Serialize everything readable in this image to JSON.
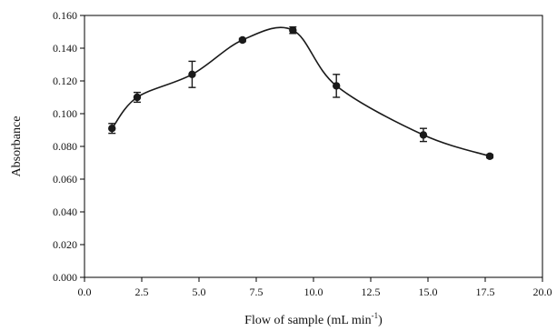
{
  "chart_data": {
    "type": "line",
    "smooth": true,
    "xlabel": "Flow of sample (mL min",
    "xlabel_sup": "-1",
    "xlabel_close": ")",
    "ylabel": "Absorbance",
    "xlim": [
      0,
      20
    ],
    "ylim": [
      0,
      0.16
    ],
    "xticks": [
      "0.0",
      "2.5",
      "5.0",
      "7.5",
      "10.0",
      "12.5",
      "15.0",
      "17.5",
      "20.0"
    ],
    "yticks": [
      "0.000",
      "0.020",
      "0.040",
      "0.060",
      "0.080",
      "0.100",
      "0.120",
      "0.140",
      "0.160"
    ],
    "grid": false,
    "legend": "none",
    "series": [
      {
        "x": [
          1.2,
          2.3,
          4.7,
          6.9,
          9.1,
          11.0,
          14.8,
          17.7
        ],
        "y": [
          0.091,
          0.11,
          0.124,
          0.145,
          0.151,
          0.117,
          0.087,
          0.074
        ],
        "error": [
          0.003,
          0.003,
          0.008,
          0.001,
          0.002,
          0.007,
          0.004,
          0.001
        ],
        "color": "#1a1a1a"
      }
    ]
  }
}
